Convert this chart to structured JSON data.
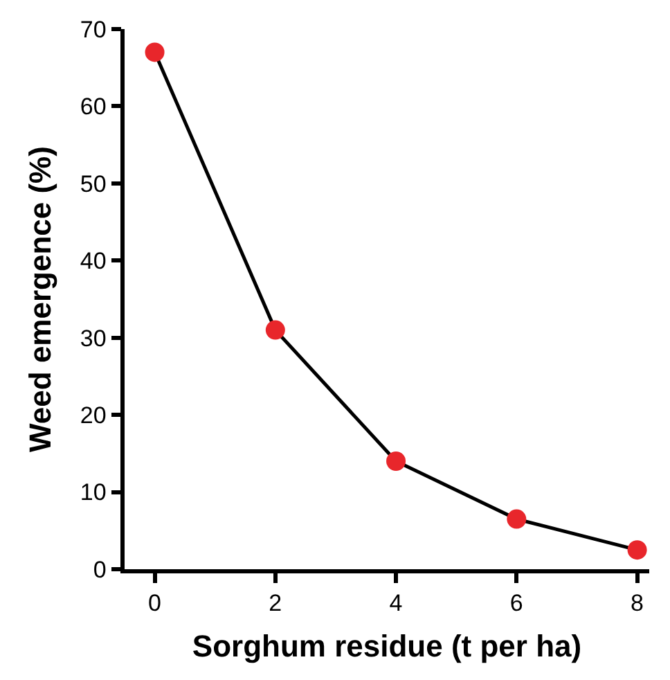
{
  "chart_data": {
    "type": "line",
    "xlabel": "Sorghum residue (t per ha)",
    "ylabel": "Weed emergence (%)",
    "x": [
      0,
      2,
      4,
      6,
      8
    ],
    "series": [
      {
        "color": "#e8262b",
        "values": [
          67,
          31,
          14,
          6.5,
          2.5
        ]
      }
    ],
    "xlim": [
      -0.5,
      8.2
    ],
    "xticks": [
      0,
      2,
      4,
      6,
      8
    ],
    "ylim": [
      0,
      70
    ],
    "yticks": [
      0,
      10,
      20,
      30,
      40,
      50,
      60,
      70
    ],
    "marker": "circle",
    "line_style": "solid",
    "legend": false
  }
}
